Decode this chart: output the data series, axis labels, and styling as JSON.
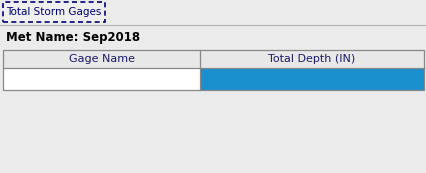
{
  "tab_label": "Total Storm Gages",
  "met_name_label": "Met Name: Sep2018",
  "col1_header": "Gage Name",
  "col2_header": "Total Depth (IN)",
  "bg_color": "#ebebeb",
  "tab_border": "#000080",
  "header_bg": "#e8e8e8",
  "header_text_color": "#1a1a6e",
  "row_col1_bg": "#ffffff",
  "row_col2_bg": "#1a8fce",
  "table_border_color": "#888888",
  "met_name_color": "#000000",
  "tab_text_color": "#000080",
  "separator_color": "#b0b0b0",
  "fig_width": 4.27,
  "fig_height": 1.73,
  "dpi": 100,
  "col_split": 0.468
}
